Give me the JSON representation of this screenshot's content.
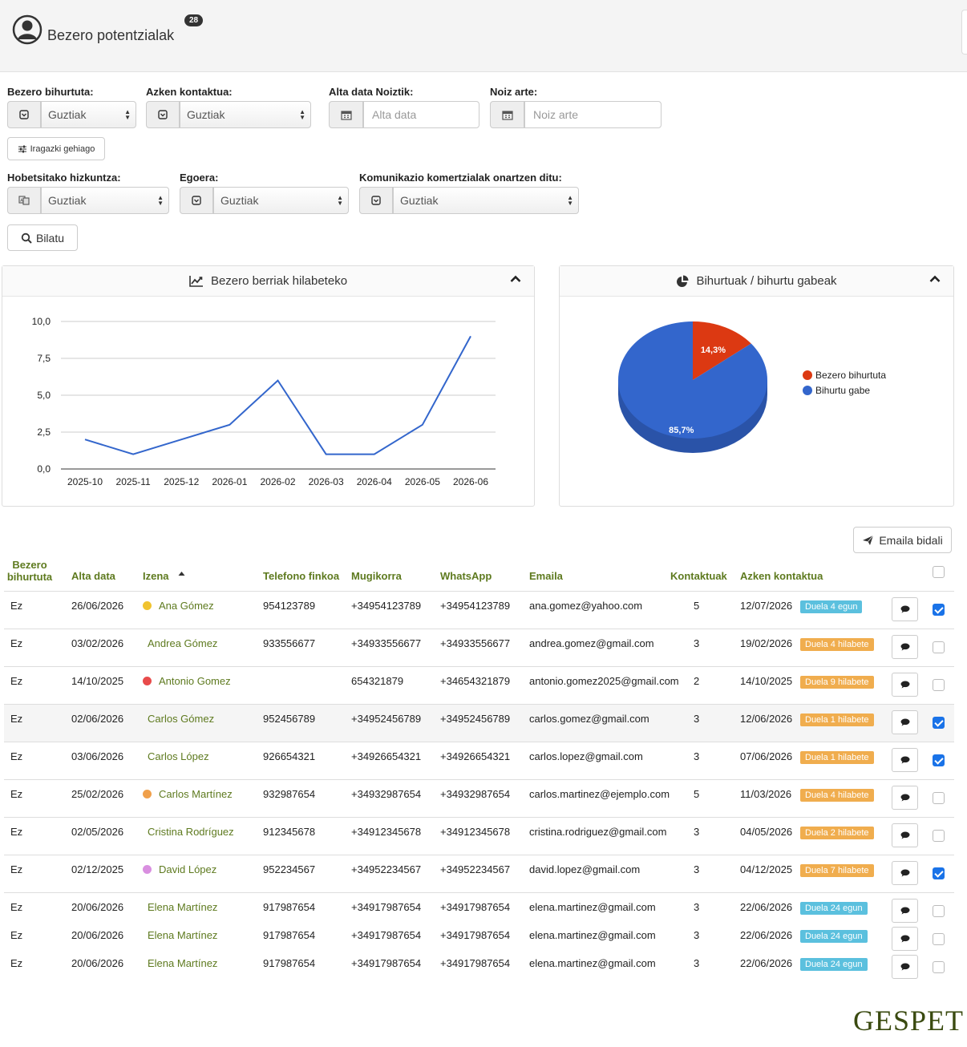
{
  "header": {
    "title": "Bezero potentzialak",
    "badge": "28"
  },
  "filters": {
    "converted_label": "Bezero bihurtuta:",
    "converted_value": "Guztiak",
    "last_contact_label": "Azken kontaktua:",
    "last_contact_value": "Guztiak",
    "date_from_label": "Alta data Noiztik:",
    "date_from_placeholder": "Alta data",
    "date_to_label": "Noiz arte:",
    "date_to_placeholder": "Noiz arte",
    "more_filters": "Iragazki gehiago",
    "language_label": "Hobetsitako hizkuntza:",
    "language_value": "Guztiak",
    "status_label": "Egoera:",
    "status_value": "Guztiak",
    "comms_label": "Komunikazio komertzialak onartzen ditu:",
    "comms_value": "Guztiak",
    "search_button": "Bilatu"
  },
  "line_panel": {
    "title": "Bezero berriak hilabeteko"
  },
  "pie_panel": {
    "title": "Bihurtuak / bihurtu gabeak"
  },
  "chart_data": [
    {
      "type": "line",
      "x": [
        "2025-10",
        "2025-11",
        "2025-12",
        "2026-01",
        "2026-02",
        "2026-03",
        "2026-04",
        "2026-05",
        "2026-06"
      ],
      "series": [
        {
          "values": [
            2,
            1,
            2,
            3,
            6,
            1,
            1,
            3,
            9
          ]
        }
      ],
      "yticks": [
        "10,0",
        "7,5",
        "5,0",
        "2,5",
        "0,0"
      ],
      "ylim": [
        0,
        10
      ],
      "grid": true,
      "color": "#3366cc"
    },
    {
      "type": "pie",
      "slices": [
        {
          "label": "Bezero bihurtuta",
          "value": 14.3,
          "text": "14,3%",
          "color": "#dc3912"
        },
        {
          "label": "Bihurtu gabe",
          "value": 85.7,
          "text": "85,7%",
          "color": "#3366cc"
        }
      ],
      "legend": "right"
    }
  ],
  "send_email_button": "Emaila bidali",
  "table": {
    "headers": {
      "converted_line1": "Bezero",
      "converted_line2": "bihurtuta",
      "date": "Alta data",
      "name": "Izena",
      "phone": "Telefono finkoa",
      "mobile": "Mugikorra",
      "whatsapp": "WhatsApp",
      "email": "Emaila",
      "contacts": "Kontaktuak",
      "last_contact": "Azken kontaktua"
    },
    "rows": [
      {
        "converted": "Ez",
        "date": "26/06/2026",
        "name": "Ana Gómez",
        "dot": "#f0c330",
        "phone": "954123789",
        "mobile": "+34954123789",
        "whatsapp": "+34954123789",
        "email": "ana.gomez@yahoo.com",
        "contacts": "5",
        "last": "12/07/2026",
        "ago": "Duela 4 egun",
        "ago_color": "blue",
        "checked": true
      },
      {
        "converted": "Ez",
        "date": "03/02/2026",
        "name": "Andrea Gómez",
        "dot": "",
        "phone": "933556677",
        "mobile": "+34933556677",
        "whatsapp": "+34933556677",
        "email": "andrea.gomez@gmail.com",
        "contacts": "3",
        "last": "19/02/2026",
        "ago": "Duela 4 hilabete",
        "ago_color": "orange",
        "checked": false
      },
      {
        "converted": "Ez",
        "date": "14/10/2025",
        "name": "Antonio Gomez",
        "dot": "#e84b4b",
        "phone": "",
        "mobile": "654321879",
        "whatsapp": "+34654321879",
        "email": "antonio.gomez2025@gmail.com",
        "contacts": "2",
        "last": "14/10/2025",
        "ago": "Duela 9 hilabete",
        "ago_color": "orange",
        "checked": false
      },
      {
        "converted": "Ez",
        "date": "02/06/2026",
        "name": "Carlos Gómez",
        "dot": "",
        "phone": "952456789",
        "mobile": "+34952456789",
        "whatsapp": "+34952456789",
        "email": "carlos.gomez@gmail.com",
        "contacts": "3",
        "last": "12/06/2026",
        "ago": "Duela 1 hilabete",
        "ago_color": "orange",
        "checked": true
      },
      {
        "converted": "Ez",
        "date": "03/06/2026",
        "name": "Carlos López",
        "dot": "",
        "phone": "926654321",
        "mobile": "+34926654321",
        "whatsapp": "+34926654321",
        "email": "carlos.lopez@gmail.com",
        "contacts": "3",
        "last": "07/06/2026",
        "ago": "Duela 1 hilabete",
        "ago_color": "orange",
        "checked": true
      },
      {
        "converted": "Ez",
        "date": "25/02/2026",
        "name": "Carlos Martínez",
        "dot": "#f0a04b",
        "phone": "932987654",
        "mobile": "+34932987654",
        "whatsapp": "+34932987654",
        "email": "carlos.martinez@ejemplo.com",
        "contacts": "5",
        "last": "11/03/2026",
        "ago": "Duela 4 hilabete",
        "ago_color": "orange",
        "checked": false
      },
      {
        "converted": "Ez",
        "date": "02/05/2026",
        "name": "Cristina Rodríguez",
        "dot": "",
        "phone": "912345678",
        "mobile": "+34912345678",
        "whatsapp": "+34912345678",
        "email": "cristina.rodriguez@gmail.com",
        "contacts": "3",
        "last": "04/05/2026",
        "ago": "Duela 2 hilabete",
        "ago_color": "orange",
        "checked": false
      },
      {
        "converted": "Ez",
        "date": "02/12/2025",
        "name": "David López",
        "dot": "#d98fe0",
        "phone": "952234567",
        "mobile": "+34952234567",
        "whatsapp": "+34952234567",
        "email": "david.lopez@gmail.com",
        "contacts": "3",
        "last": "04/12/2025",
        "ago": "Duela 7 hilabete",
        "ago_color": "orange",
        "checked": true
      },
      {
        "converted": "Ez",
        "date": "20/06/2026",
        "name": "Elena Martínez",
        "dot": "",
        "phone": "917987654",
        "mobile": "+34917987654",
        "whatsapp": "+34917987654",
        "email": "elena.martinez@gmail.com",
        "contacts": "3",
        "last": "22/06/2026",
        "ago": "Duela 24 egun",
        "ago_color": "blue",
        "checked": false
      },
      {
        "converted": "Ez",
        "date": "20/06/2026",
        "name": "Elena Martínez",
        "dot": "",
        "phone": "917987654",
        "mobile": "+34917987654",
        "whatsapp": "+34917987654",
        "email": "elena.martinez@gmail.com",
        "contacts": "3",
        "last": "22/06/2026",
        "ago": "Duela 24 egun",
        "ago_color": "blue",
        "checked": false
      },
      {
        "converted": "Ez",
        "date": "20/06/2026",
        "name": "Elena Martínez",
        "dot": "",
        "phone": "917987654",
        "mobile": "+34917987654",
        "whatsapp": "+34917987654",
        "email": "elena.martinez@gmail.com",
        "contacts": "3",
        "last": "22/06/2026",
        "ago": "Duela 24 egun",
        "ago_color": "blue",
        "checked": false
      }
    ]
  },
  "logo": {
    "text": "GESPET"
  },
  "icons": [
    "user-circle-icon",
    "filter-icon",
    "calendar-icon",
    "sliders-icon",
    "language-icon",
    "search-icon",
    "line-chart-icon",
    "pie-chart-icon",
    "chevron-up-icon",
    "paper-plane-icon",
    "sort-asc-icon",
    "comment-icon",
    "checkbox-icon"
  ]
}
